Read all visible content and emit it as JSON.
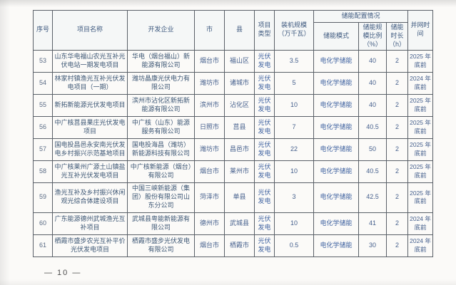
{
  "page": {
    "footer_page_number": "— 10 —"
  },
  "table": {
    "headers": {
      "no": "序号",
      "name": "项目名称",
      "developer": "开发企业",
      "city": "市",
      "county": "县",
      "type": "项目类型",
      "capacity": "装机规模（万千瓦）",
      "storage_group": "储能配置情况",
      "storage_mode": "储能模式",
      "storage_ratio": "储能规模比例（%）",
      "storage_duration": "储能时长（h）",
      "grid_time": "并网时间"
    },
    "rows": [
      {
        "no": "53",
        "name": "山东华电福山农光互补光伏电站一期发电项目",
        "developer": "华电（烟台福山）新能源有限公司",
        "city": "烟台市",
        "county": "福山区",
        "type": "光伏发电",
        "capacity": "3.5",
        "storage_mode": "电化学储能",
        "storage_ratio": "40",
        "storage_duration": "2",
        "grid_time": "2025 年底前"
      },
      {
        "no": "54",
        "name": "林家村镇渔光互补光伏发电项目（一期）",
        "developer": "潍坊晶康光伏电力有限公司",
        "city": "潍坊市",
        "county": "诸城市",
        "type": "光伏发电",
        "capacity": "5",
        "storage_mode": "电化学储能",
        "storage_ratio": "40",
        "storage_duration": "2",
        "grid_time": "2024 年底前"
      },
      {
        "no": "55",
        "name": "新拓新能源光伏发电项目",
        "developer": "滨州市沾化区新拓新能源有限公司",
        "city": "滨州市",
        "county": "沾化区",
        "type": "光伏发电",
        "capacity": "10",
        "storage_mode": "电化学储能",
        "storage_ratio": "40",
        "storage_duration": "2",
        "grid_time": "2025 年底前"
      },
      {
        "no": "56",
        "name": "中广核莒县果庄光伏发电项目",
        "developer": "中广核（山东）能源服务有限公司",
        "city": "日照市",
        "county": "莒县",
        "type": "光伏发电",
        "capacity": "7",
        "storage_mode": "电化学储能",
        "storage_ratio": "40.5",
        "storage_duration": "2",
        "grid_time": "2025 年底前"
      },
      {
        "no": "57",
        "name": "国电投昌邑永安南光伏发电乡村振兴示范基地项目",
        "developer": "国电投海昌（潍坊）新能源科技有限公司",
        "city": "潍坊市",
        "county": "昌邑市",
        "type": "光伏发电",
        "capacity": "22",
        "storage_mode": "电化学储能",
        "storage_ratio": "50",
        "storage_duration": "2",
        "grid_time": "2025 年底前"
      },
      {
        "no": "58",
        "name": "中广核莱州广源土山镇盐光互补光伏发电项目",
        "developer": "中广核新能源（烟台）有限公司",
        "city": "烟台市",
        "county": "莱州市",
        "type": "光伏发电",
        "capacity": "10",
        "storage_mode": "电化学储能",
        "storage_ratio": "40.5",
        "storage_duration": "2",
        "grid_time": "2025 年底前"
      },
      {
        "no": "59",
        "name": "渔光互补及乡村振兴休闲观光综合体建设项目",
        "developer": "中国三峡新能源（集团）股份有限公司山东分公司",
        "city": "菏泽市",
        "county": "单县",
        "type": "光伏发电",
        "capacity": "3",
        "storage_mode": "电化学储能",
        "storage_ratio": "42.5",
        "storage_duration": "2",
        "grid_time": "2025 年底前",
        "tall": true
      },
      {
        "no": "60",
        "name": "广东能源德州武城渔光互补项目",
        "developer": "武城县粤能新能源有限公司",
        "city": "德州市",
        "county": "武城县",
        "type": "光伏发电",
        "capacity": "10",
        "storage_mode": "电化学储能",
        "storage_ratio": "41",
        "storage_duration": "2",
        "grid_time": "2024 年底前"
      },
      {
        "no": "61",
        "name": "栖霞市盛步农光互补平价光伏发电项目",
        "developer": "栖霞市盛步光伏发电有限公司",
        "city": "烟台市",
        "county": "栖霞市",
        "type": "光伏发电",
        "capacity": "0.5",
        "storage_mode": "电化学储能",
        "storage_ratio": "30",
        "storage_duration": "2",
        "grid_time": "2024 年底前"
      }
    ]
  }
}
